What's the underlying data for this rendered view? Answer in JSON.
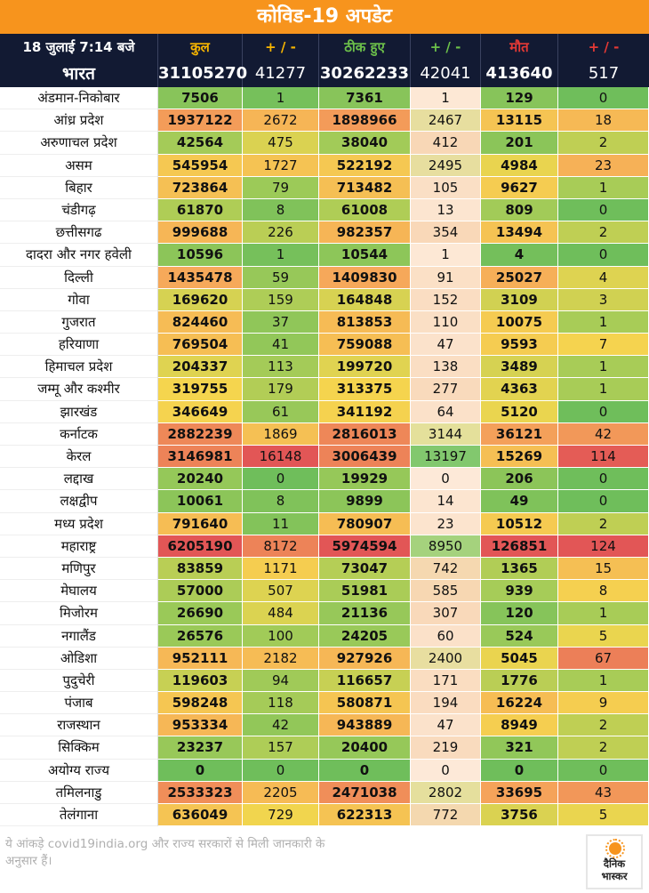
{
  "title": "कोविड-19 अपडेट",
  "header": {
    "date": "18 जुलाई 7:14 बजे",
    "total": "कुल",
    "pm1": "+ / -",
    "recovered": "ठीक हुए",
    "pm2": "+ / -",
    "deaths": "मौत",
    "pm3": "+ / -"
  },
  "colors": {
    "title_bg": "#f7941d",
    "header_bg": "#121a33",
    "total_header": "#f7b500",
    "recovered_header": "#6cc04a",
    "deaths_header": "#e53935",
    "green": "#6fbe5b",
    "yellow": "#f9d54a",
    "red": "#e25858"
  },
  "national": {
    "name": "भारत",
    "total": 31105270,
    "total_delta": 41277,
    "recovered": 30262233,
    "recovered_delta": 42041,
    "deaths": 413640,
    "deaths_delta": 517
  },
  "chart_data": {
    "type": "table",
    "columns": [
      "कुल",
      "+ / -",
      "ठीक हुए",
      "+ / -",
      "मौत",
      "+ / -"
    ],
    "rows": [
      [
        "अंडमान-निकोबार",
        7506,
        1,
        7361,
        1,
        129,
        0
      ],
      [
        "आंध्र प्रदेश",
        1937122,
        2672,
        1898966,
        2467,
        13115,
        18
      ],
      [
        "अरुणाचल प्रदेश",
        42564,
        475,
        38040,
        412,
        201,
        2
      ],
      [
        "असम",
        545954,
        1727,
        522192,
        2495,
        4984,
        23
      ],
      [
        "बिहार",
        723864,
        79,
        713482,
        105,
        9627,
        1
      ],
      [
        "चंडीगढ़",
        61870,
        8,
        61008,
        13,
        809,
        0
      ],
      [
        "छत्तीसगढ",
        999688,
        226,
        982357,
        354,
        13494,
        2
      ],
      [
        "दादरा और नगर हवेली",
        10596,
        1,
        10544,
        1,
        4,
        0
      ],
      [
        "दिल्ली",
        1435478,
        59,
        1409830,
        91,
        25027,
        4
      ],
      [
        "गोवा",
        169620,
        159,
        164848,
        152,
        3109,
        3
      ],
      [
        "गुजरात",
        824460,
        37,
        813853,
        110,
        10075,
        1
      ],
      [
        "हरियाणा",
        769504,
        41,
        759088,
        47,
        9593,
        7
      ],
      [
        "हिमाचल प्रदेश",
        204337,
        113,
        199720,
        138,
        3489,
        1
      ],
      [
        "जम्मू और कश्मीर",
        319755,
        179,
        313375,
        277,
        4363,
        1
      ],
      [
        "झारखंड",
        346649,
        61,
        341192,
        64,
        5120,
        0
      ],
      [
        "कर्नाटक",
        2882239,
        1869,
        2816013,
        3144,
        36121,
        42
      ],
      [
        "केरल",
        3146981,
        16148,
        3006439,
        13197,
        15269,
        114
      ],
      [
        "लद्दाख",
        20240,
        0,
        19929,
        0,
        206,
        0
      ],
      [
        "लक्षद्वीप",
        10061,
        8,
        9899,
        14,
        49,
        0
      ],
      [
        "मध्य प्रदेश",
        791640,
        11,
        780907,
        23,
        10512,
        2
      ],
      [
        "महाराष्ट्र",
        6205190,
        8172,
        5974594,
        8950,
        126851,
        124
      ],
      [
        "मणिपुर",
        83859,
        1171,
        73047,
        742,
        1365,
        15
      ],
      [
        "मेघालय",
        57000,
        507,
        51981,
        585,
        939,
        8
      ],
      [
        "मिजोरम",
        26690,
        484,
        21136,
        307,
        120,
        1
      ],
      [
        "नगालैंड",
        26576,
        100,
        24205,
        60,
        524,
        5
      ],
      [
        "ओडिशा",
        952111,
        2182,
        927926,
        2400,
        5045,
        67
      ],
      [
        "पुदुचेरी",
        119603,
        94,
        116657,
        171,
        1776,
        1
      ],
      [
        "पंजाब",
        598248,
        118,
        580871,
        194,
        16224,
        9
      ],
      [
        "राजस्थान",
        953334,
        42,
        943889,
        47,
        8949,
        2
      ],
      [
        "सिक्किम",
        23237,
        157,
        20400,
        219,
        321,
        2
      ],
      [
        "अयोग्य राज्य",
        0,
        0,
        0,
        0,
        0,
        0
      ],
      [
        "तमिलनाडु",
        2533323,
        2205,
        2471038,
        2802,
        33695,
        43
      ],
      [
        "तेलंगाना",
        636049,
        729,
        622313,
        772,
        3756,
        5
      ]
    ]
  },
  "footer": {
    "note": "ये आंकड़े covid19india.org और राज्य सरकारों से मिली जानकारी के अनुसार हैं।",
    "logo_line1": "दैनिक",
    "logo_line2": "भास्कर"
  }
}
